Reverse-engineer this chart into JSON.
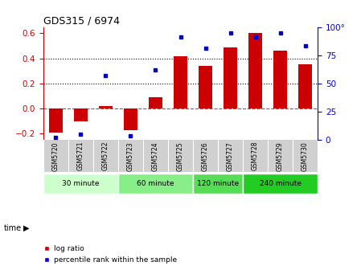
{
  "title": "GDS315 / 6974",
  "samples": [
    "GSM5720",
    "GSM5721",
    "GSM5722",
    "GSM5723",
    "GSM5724",
    "GSM5725",
    "GSM5726",
    "GSM5727",
    "GSM5728",
    "GSM5729",
    "GSM5730"
  ],
  "log_ratio": [
    -0.19,
    -0.1,
    0.02,
    -0.17,
    0.09,
    0.42,
    0.34,
    0.49,
    0.6,
    0.46,
    0.35
  ],
  "percentile": [
    2,
    5,
    57,
    4,
    62,
    91,
    81,
    95,
    91,
    95,
    83
  ],
  "bar_color": "#cc0000",
  "dot_color": "#0000cc",
  "ylim_left": [
    -0.25,
    0.65
  ],
  "ylim_right": [
    0,
    100
  ],
  "yticks_left": [
    -0.2,
    0.0,
    0.2,
    0.4,
    0.6
  ],
  "yticks_right": [
    0,
    25,
    50,
    75,
    100
  ],
  "hline_y": 0.0,
  "dotted_lines": [
    0.2,
    0.4
  ],
  "time_groups": [
    {
      "label": "30 minute",
      "start": 0,
      "end": 3,
      "color": "#ccffcc"
    },
    {
      "label": "60 minute",
      "start": 3,
      "end": 6,
      "color": "#88ee88"
    },
    {
      "label": "120 minute",
      "start": 6,
      "end": 8,
      "color": "#55dd55"
    },
    {
      "label": "240 minute",
      "start": 8,
      "end": 11,
      "color": "#22cc22"
    }
  ],
  "legend_bar_label": "log ratio",
  "legend_dot_label": "percentile rank within the sample",
  "bg_color": "#ffffff",
  "strip_bg_color": "#d0d0d0",
  "strip_line_color": "#aaaaaa"
}
